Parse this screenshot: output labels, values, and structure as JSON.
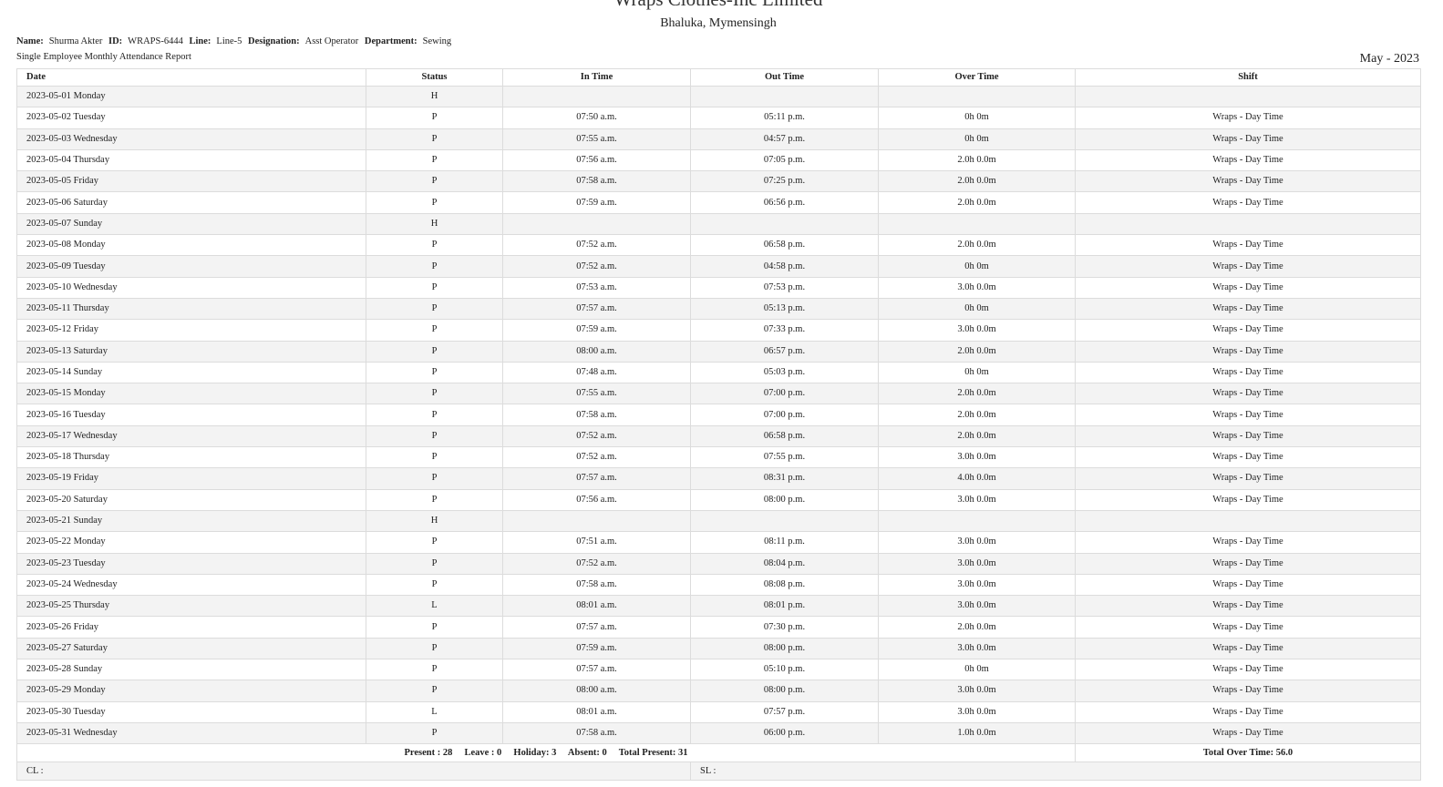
{
  "header": {
    "company": "Wraps Clothes-Inc Limited",
    "address": "Bhaluka, Mymensingh"
  },
  "employee": {
    "name_label": "Name:",
    "name": "Shurma Akter",
    "id_label": "ID:",
    "id": "WRAPS-6444",
    "line_label": "Line:",
    "line": "Line-5",
    "designation_label": "Designation:",
    "designation": "Asst Operator",
    "department_label": "Department:",
    "department": "Sewing"
  },
  "report_title": "Single Employee Monthly Attendance Report",
  "period": "May  -  2023",
  "columns": [
    "Date",
    "Status",
    "In Time",
    "Out Time",
    "Over Time",
    "Shift"
  ],
  "rows": [
    {
      "date": "2023-05-01 Monday",
      "status": "H",
      "in": "",
      "out": "",
      "ot": "",
      "shift": ""
    },
    {
      "date": "2023-05-02 Tuesday",
      "status": "P",
      "in": "07:50 a.m.",
      "out": "05:11 p.m.",
      "ot": "0h 0m",
      "shift": "Wraps - Day Time"
    },
    {
      "date": "2023-05-03 Wednesday",
      "status": "P",
      "in": "07:55 a.m.",
      "out": "04:57 p.m.",
      "ot": "0h 0m",
      "shift": "Wraps - Day Time"
    },
    {
      "date": "2023-05-04 Thursday",
      "status": "P",
      "in": "07:56 a.m.",
      "out": "07:05 p.m.",
      "ot": "2.0h 0.0m",
      "shift": "Wraps - Day Time"
    },
    {
      "date": "2023-05-05 Friday",
      "status": "P",
      "in": "07:58 a.m.",
      "out": "07:25 p.m.",
      "ot": "2.0h 0.0m",
      "shift": "Wraps - Day Time"
    },
    {
      "date": "2023-05-06 Saturday",
      "status": "P",
      "in": "07:59 a.m.",
      "out": "06:56 p.m.",
      "ot": "2.0h 0.0m",
      "shift": "Wraps - Day Time"
    },
    {
      "date": "2023-05-07 Sunday",
      "status": "H",
      "in": "",
      "out": "",
      "ot": "",
      "shift": ""
    },
    {
      "date": "2023-05-08 Monday",
      "status": "P",
      "in": "07:52 a.m.",
      "out": "06:58 p.m.",
      "ot": "2.0h 0.0m",
      "shift": "Wraps - Day Time"
    },
    {
      "date": "2023-05-09 Tuesday",
      "status": "P",
      "in": "07:52 a.m.",
      "out": "04:58 p.m.",
      "ot": "0h 0m",
      "shift": "Wraps - Day Time"
    },
    {
      "date": "2023-05-10 Wednesday",
      "status": "P",
      "in": "07:53 a.m.",
      "out": "07:53 p.m.",
      "ot": "3.0h 0.0m",
      "shift": "Wraps - Day Time"
    },
    {
      "date": "2023-05-11 Thursday",
      "status": "P",
      "in": "07:57 a.m.",
      "out": "05:13 p.m.",
      "ot": "0h 0m",
      "shift": "Wraps - Day Time"
    },
    {
      "date": "2023-05-12 Friday",
      "status": "P",
      "in": "07:59 a.m.",
      "out": "07:33 p.m.",
      "ot": "3.0h 0.0m",
      "shift": "Wraps - Day Time"
    },
    {
      "date": "2023-05-13 Saturday",
      "status": "P",
      "in": "08:00 a.m.",
      "out": "06:57 p.m.",
      "ot": "2.0h 0.0m",
      "shift": "Wraps - Day Time"
    },
    {
      "date": "2023-05-14 Sunday",
      "status": "P",
      "in": "07:48 a.m.",
      "out": "05:03 p.m.",
      "ot": "0h 0m",
      "shift": "Wraps - Day Time"
    },
    {
      "date": "2023-05-15 Monday",
      "status": "P",
      "in": "07:55 a.m.",
      "out": "07:00 p.m.",
      "ot": "2.0h 0.0m",
      "shift": "Wraps - Day Time"
    },
    {
      "date": "2023-05-16 Tuesday",
      "status": "P",
      "in": "07:58 a.m.",
      "out": "07:00 p.m.",
      "ot": "2.0h 0.0m",
      "shift": "Wraps - Day Time"
    },
    {
      "date": "2023-05-17 Wednesday",
      "status": "P",
      "in": "07:52 a.m.",
      "out": "06:58 p.m.",
      "ot": "2.0h 0.0m",
      "shift": "Wraps - Day Time"
    },
    {
      "date": "2023-05-18 Thursday",
      "status": "P",
      "in": "07:52 a.m.",
      "out": "07:55 p.m.",
      "ot": "3.0h 0.0m",
      "shift": "Wraps - Day Time"
    },
    {
      "date": "2023-05-19 Friday",
      "status": "P",
      "in": "07:57 a.m.",
      "out": "08:31 p.m.",
      "ot": "4.0h 0.0m",
      "shift": "Wraps - Day Time"
    },
    {
      "date": "2023-05-20 Saturday",
      "status": "P",
      "in": "07:56 a.m.",
      "out": "08:00 p.m.",
      "ot": "3.0h 0.0m",
      "shift": "Wraps - Day Time"
    },
    {
      "date": "2023-05-21 Sunday",
      "status": "H",
      "in": "",
      "out": "",
      "ot": "",
      "shift": ""
    },
    {
      "date": "2023-05-22 Monday",
      "status": "P",
      "in": "07:51 a.m.",
      "out": "08:11 p.m.",
      "ot": "3.0h 0.0m",
      "shift": "Wraps - Day Time"
    },
    {
      "date": "2023-05-23 Tuesday",
      "status": "P",
      "in": "07:52 a.m.",
      "out": "08:04 p.m.",
      "ot": "3.0h 0.0m",
      "shift": "Wraps - Day Time"
    },
    {
      "date": "2023-05-24 Wednesday",
      "status": "P",
      "in": "07:58 a.m.",
      "out": "08:08 p.m.",
      "ot": "3.0h 0.0m",
      "shift": "Wraps - Day Time"
    },
    {
      "date": "2023-05-25 Thursday",
      "status": "L",
      "in": "08:01 a.m.",
      "out": "08:01 p.m.",
      "ot": "3.0h 0.0m",
      "shift": "Wraps - Day Time"
    },
    {
      "date": "2023-05-26 Friday",
      "status": "P",
      "in": "07:57 a.m.",
      "out": "07:30 p.m.",
      "ot": "2.0h 0.0m",
      "shift": "Wraps - Day Time"
    },
    {
      "date": "2023-05-27 Saturday",
      "status": "P",
      "in": "07:59 a.m.",
      "out": "08:00 p.m.",
      "ot": "3.0h 0.0m",
      "shift": "Wraps - Day Time"
    },
    {
      "date": "2023-05-28 Sunday",
      "status": "P",
      "in": "07:57 a.m.",
      "out": "05:10 p.m.",
      "ot": "0h 0m",
      "shift": "Wraps - Day Time"
    },
    {
      "date": "2023-05-29 Monday",
      "status": "P",
      "in": "08:00 a.m.",
      "out": "08:00 p.m.",
      "ot": "3.0h 0.0m",
      "shift": "Wraps - Day Time"
    },
    {
      "date": "2023-05-30 Tuesday",
      "status": "L",
      "in": "08:01 a.m.",
      "out": "07:57 p.m.",
      "ot": "3.0h 0.0m",
      "shift": "Wraps - Day Time"
    },
    {
      "date": "2023-05-31 Wednesday",
      "status": "P",
      "in": "07:58 a.m.",
      "out": "06:00 p.m.",
      "ot": "1.0h 0.0m",
      "shift": "Wraps - Day Time"
    }
  ],
  "summary": {
    "counts": "Present : 28     Leave : 0     Holiday: 3     Absent: 0     Total Present: 31",
    "total_ot": "Total Over Time: 56.0"
  },
  "leave": {
    "cl": "CL :",
    "sl": "SL :"
  }
}
